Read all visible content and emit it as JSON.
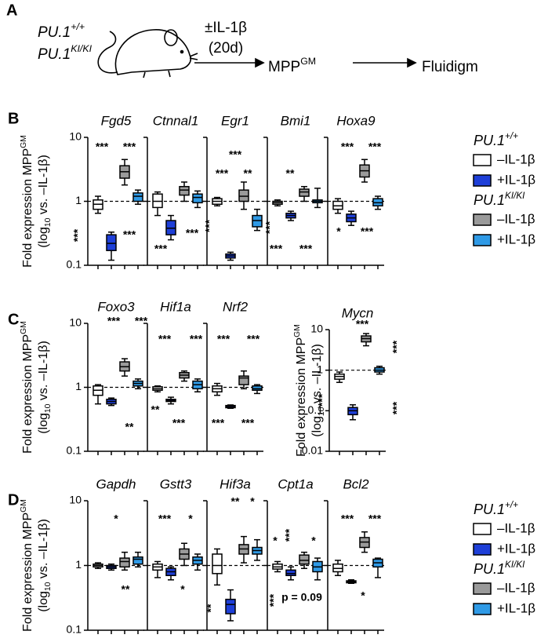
{
  "panel_a": {
    "label": "A",
    "genotypes": [
      {
        "name": "PU.1",
        "sup": "+/+"
      },
      {
        "name": "PU.1",
        "sup": "KI/KI"
      }
    ],
    "treatment": "±IL-1β",
    "duration": "(20d)",
    "cell": "MPP",
    "cell_sup": "GM",
    "readout": "Fluidigm"
  },
  "legend": {
    "groups": [
      {
        "name": "PU.1",
        "sup": "+/+",
        "series": [
          {
            "name": "–IL-1β",
            "color": "#ffffff"
          },
          {
            "name": "+IL-1β",
            "color": "#1e3fd8"
          }
        ]
      },
      {
        "name": "PU.1",
        "sup": "KI/KI",
        "series": [
          {
            "name": "–IL-1β",
            "color": "#9a9a9a"
          },
          {
            "name": "+IL-1β",
            "color": "#2f9ae6"
          }
        ]
      }
    ]
  },
  "chart_data": [
    {
      "type": "box",
      "label": "B",
      "log": true,
      "ylim": [
        0.1,
        10
      ],
      "yticks": [
        0.1,
        1,
        10
      ],
      "reference": 1,
      "ylabel": {
        "text": "Fold expression MPP",
        "sup": "GM",
        "line2": "(log",
        "sub": "10",
        "end": " vs. –IL-1β)"
      },
      "plots": [
        {
          "title": "Fgd5",
          "boxes": [
            {
              "min": 0.65,
              "q1": 0.75,
              "median": 0.9,
              "q3": 1.05,
              "max": 1.2
            },
            {
              "min": 0.12,
              "q1": 0.17,
              "median": 0.22,
              "q3": 0.3,
              "max": 0.33
            },
            {
              "min": 1.8,
              "q1": 2.3,
              "median": 2.9,
              "q3": 3.6,
              "max": 4.5
            },
            {
              "min": 0.9,
              "q1": 1.0,
              "median": 1.2,
              "q3": 1.35,
              "max": 1.5
            }
          ],
          "stats": [
            "***",
            "***",
            "***",
            "***"
          ]
        },
        {
          "title": "Ctnnal1",
          "boxes": [
            {
              "min": 0.6,
              "q1": 0.8,
              "median": 1.0,
              "q3": 1.3,
              "max": 1.4
            },
            {
              "min": 0.25,
              "q1": 0.3,
              "median": 0.38,
              "q3": 0.5,
              "max": 0.6
            },
            {
              "min": 1.0,
              "q1": 1.25,
              "median": 1.5,
              "q3": 1.7,
              "max": 2.0
            },
            {
              "min": 0.8,
              "q1": 0.95,
              "median": 1.15,
              "q3": 1.3,
              "max": 1.45
            }
          ],
          "stats": [
            "***",
            "***"
          ]
        },
        {
          "title": "Egr1",
          "boxes": [
            {
              "min": 0.85,
              "q1": 0.9,
              "median": 1.0,
              "q3": 1.1,
              "max": 1.15
            },
            {
              "min": 0.12,
              "q1": 0.13,
              "median": 0.14,
              "q3": 0.15,
              "max": 0.16
            },
            {
              "min": 0.75,
              "q1": 1.0,
              "median": 1.2,
              "q3": 1.5,
              "max": 2.0
            },
            {
              "min": 0.35,
              "q1": 0.4,
              "median": 0.5,
              "q3": 0.6,
              "max": 0.75
            }
          ],
          "stats": [
            "***",
            "***",
            "**",
            "***",
            "***"
          ]
        },
        {
          "title": "Bmi1",
          "boxes": [
            {
              "min": 0.85,
              "q1": 0.9,
              "median": 0.95,
              "q3": 1.0,
              "max": 1.05
            },
            {
              "min": 0.5,
              "q1": 0.55,
              "median": 0.6,
              "q3": 0.65,
              "max": 0.7
            },
            {
              "min": 1.0,
              "q1": 1.2,
              "median": 1.4,
              "q3": 1.55,
              "max": 1.7
            },
            {
              "min": 0.8,
              "q1": 0.95,
              "median": 1.0,
              "q3": 1.05,
              "max": 1.6
            }
          ],
          "stats": [
            "**",
            "***",
            "***"
          ]
        },
        {
          "title": "Hoxa9",
          "boxes": [
            {
              "min": 0.65,
              "q1": 0.75,
              "median": 0.85,
              "q3": 1.0,
              "max": 1.1
            },
            {
              "min": 0.42,
              "q1": 0.48,
              "median": 0.55,
              "q3": 0.63,
              "max": 0.7
            },
            {
              "min": 2.0,
              "q1": 2.4,
              "median": 3.0,
              "q3": 3.7,
              "max": 4.5
            },
            {
              "min": 0.75,
              "q1": 0.85,
              "median": 0.95,
              "q3": 1.1,
              "max": 1.2
            }
          ],
          "stats": [
            "***",
            "***",
            "*",
            "***"
          ]
        }
      ]
    },
    {
      "type": "box",
      "label": "C",
      "log": true,
      "ylim": [
        0.1,
        10
      ],
      "yticks": [
        0.1,
        1,
        10
      ],
      "reference": 1,
      "ylabel": {
        "text": "Fold expression MPP",
        "sup": "GM",
        "line2": "(log",
        "sub": "10",
        "end": " vs. –IL-1β)"
      },
      "plots": [
        {
          "title": "Foxo3",
          "boxes": [
            {
              "min": 0.55,
              "q1": 0.75,
              "median": 0.9,
              "q3": 1.05,
              "max": 1.1
            },
            {
              "min": 0.52,
              "q1": 0.55,
              "median": 0.6,
              "q3": 0.65,
              "max": 0.68
            },
            {
              "min": 1.5,
              "q1": 1.8,
              "median": 2.1,
              "q3": 2.5,
              "max": 2.8
            },
            {
              "min": 0.95,
              "q1": 1.05,
              "median": 1.15,
              "q3": 1.25,
              "max": 1.35
            }
          ],
          "stats": [
            "***",
            "***",
            "**"
          ]
        },
        {
          "title": "Hif1a",
          "boxes": [
            {
              "min": 0.85,
              "q1": 0.9,
              "median": 0.95,
              "q3": 1.02,
              "max": 1.05
            },
            {
              "min": 0.55,
              "q1": 0.6,
              "median": 0.62,
              "q3": 0.65,
              "max": 0.7
            },
            {
              "min": 1.25,
              "q1": 1.4,
              "median": 1.55,
              "q3": 1.7,
              "max": 1.8
            },
            {
              "min": 0.85,
              "q1": 0.95,
              "median": 1.1,
              "q3": 1.25,
              "max": 1.35
            }
          ],
          "stats": [
            "***",
            "***",
            "**",
            "***"
          ]
        },
        {
          "title": "Nrf2",
          "boxes": [
            {
              "min": 0.75,
              "q1": 0.85,
              "median": 0.95,
              "q3": 1.05,
              "max": 1.15
            },
            {
              "min": 0.47,
              "q1": 0.48,
              "median": 0.5,
              "q3": 0.52,
              "max": 0.53
            },
            {
              "min": 0.95,
              "q1": 1.1,
              "median": 1.4,
              "q3": 1.5,
              "max": 1.8
            },
            {
              "min": 0.8,
              "q1": 0.9,
              "median": 0.95,
              "q3": 1.05,
              "max": 1.1
            }
          ],
          "stats": [
            "***",
            "***",
            "***",
            "***"
          ]
        }
      ]
    },
    {
      "type": "box",
      "log": true,
      "ylim": [
        0.01,
        10
      ],
      "yticks": [
        0.01,
        0.1,
        1,
        10
      ],
      "reference": 1,
      "ylabel": {
        "text": "Fold expression MPP",
        "sup": "GM",
        "line2": "(log",
        "sub": "10",
        "end": " vs. –IL-1β)"
      },
      "plots": [
        {
          "title": "Mycn",
          "boxes": [
            {
              "min": 0.5,
              "q1": 0.6,
              "median": 0.7,
              "q3": 0.8,
              "max": 0.9
            },
            {
              "min": 0.06,
              "q1": 0.08,
              "median": 0.1,
              "q3": 0.12,
              "max": 0.14
            },
            {
              "min": 4,
              "q1": 5,
              "median": 6,
              "q3": 7,
              "max": 8
            },
            {
              "min": 0.8,
              "q1": 0.9,
              "median": 1.0,
              "q3": 1.15,
              "max": 1.25
            }
          ],
          "stats": [
            "***",
            "***",
            "***",
            "***"
          ]
        }
      ]
    },
    {
      "type": "box",
      "label": "D",
      "log": true,
      "ylim": [
        0.1,
        10
      ],
      "yticks": [
        0.1,
        1,
        10
      ],
      "reference": 1,
      "ylabel": {
        "text": "Fold expression MPP",
        "sup": "GM",
        "line2": "(log",
        "sub": "10",
        "end": " vs. –IL-1β)"
      },
      "plots": [
        {
          "title": "Gapdh",
          "boxes": [
            {
              "min": 0.9,
              "q1": 0.95,
              "median": 1.0,
              "q3": 1.05,
              "max": 1.1
            },
            {
              "min": 0.85,
              "q1": 0.9,
              "median": 0.95,
              "q3": 1.0,
              "max": 1.05
            },
            {
              "min": 0.85,
              "q1": 0.95,
              "median": 1.15,
              "q3": 1.3,
              "max": 1.6
            },
            {
              "min": 0.95,
              "q1": 1.05,
              "median": 1.25,
              "q3": 1.35,
              "max": 1.6
            }
          ],
          "stats": [
            "*",
            "**"
          ]
        },
        {
          "title": "Gstt3",
          "boxes": [
            {
              "min": 0.65,
              "q1": 0.85,
              "median": 0.95,
              "q3": 1.05,
              "max": 1.15
            },
            {
              "min": 0.6,
              "q1": 0.7,
              "median": 0.8,
              "q3": 0.9,
              "max": 0.95
            },
            {
              "min": 1.0,
              "q1": 1.25,
              "median": 1.5,
              "q3": 1.8,
              "max": 2.2
            },
            {
              "min": 0.85,
              "q1": 1.05,
              "median": 1.2,
              "q3": 1.35,
              "max": 1.5
            }
          ],
          "stats": [
            "***",
            "*",
            "*"
          ]
        },
        {
          "title": "Hif3a",
          "boxes": [
            {
              "min": 0.5,
              "q1": 0.75,
              "median": 1.0,
              "q3": 1.5,
              "max": 1.8
            },
            {
              "min": 0.14,
              "q1": 0.18,
              "median": 0.25,
              "q3": 0.3,
              "max": 0.42
            },
            {
              "min": 1.1,
              "q1": 1.5,
              "median": 1.8,
              "q3": 2.1,
              "max": 2.8
            },
            {
              "min": 1.2,
              "q1": 1.5,
              "median": 1.7,
              "q3": 1.9,
              "max": 2.5
            }
          ],
          "stats": [
            "**",
            "*",
            "**",
            "***"
          ]
        },
        {
          "title": "Cpt1a",
          "boxes": [
            {
              "min": 0.8,
              "q1": 0.88,
              "median": 0.95,
              "q3": 1.05,
              "max": 1.15
            },
            {
              "min": 0.6,
              "q1": 0.7,
              "median": 0.75,
              "q3": 0.85,
              "max": 0.95
            },
            {
              "min": 0.9,
              "q1": 1.05,
              "median": 1.2,
              "q3": 1.45,
              "max": 1.6
            },
            {
              "min": 0.6,
              "q1": 0.8,
              "median": 0.95,
              "q3": 1.15,
              "max": 1.3
            }
          ],
          "stats": [
            "*",
            "***",
            "*",
            "p = 0.09"
          ]
        },
        {
          "title": "Bcl2",
          "boxes": [
            {
              "min": 0.7,
              "q1": 0.8,
              "median": 0.9,
              "q3": 1.05,
              "max": 1.2
            },
            {
              "min": 0.53,
              "q1": 0.54,
              "median": 0.56,
              "q3": 0.58,
              "max": 0.6
            },
            {
              "min": 1.6,
              "q1": 1.9,
              "median": 2.3,
              "q3": 2.7,
              "max": 3.3
            },
            {
              "min": 0.65,
              "q1": 0.95,
              "median": 1.1,
              "q3": 1.25,
              "max": 1.3
            }
          ],
          "stats": [
            "***",
            "***",
            "*"
          ]
        }
      ]
    }
  ]
}
